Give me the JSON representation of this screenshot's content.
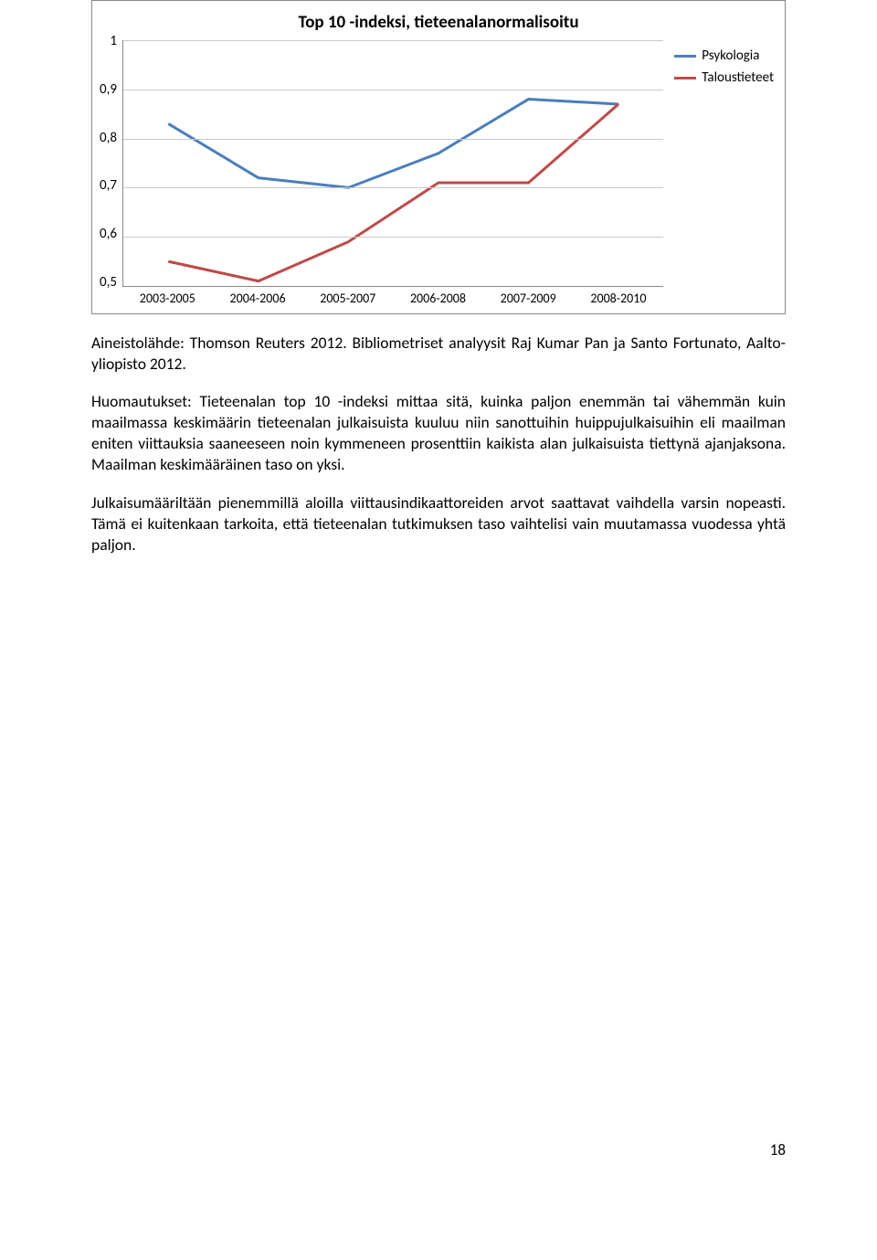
{
  "chart": {
    "type": "line",
    "title": "Top 10 -indeksi, tieteenalanormalisoitu",
    "title_fontsize": 19,
    "title_weight": "bold",
    "background_color": "#ffffff",
    "border_color": "#888888",
    "grid_color": "#c8c8c8",
    "axis_color": "#888888",
    "label_fontsize": 15,
    "y_ticks": [
      "1",
      "0,9",
      "0,8",
      "0,7",
      "0,6",
      "0,5"
    ],
    "ylim": [
      0.5,
      1.0
    ],
    "ytick_step": 0.1,
    "x_labels": [
      "2003-2005",
      "2004-2006",
      "2005-2007",
      "2006-2008",
      "2007-2009",
      "2008-2010"
    ],
    "series": [
      {
        "name": "Psykologia",
        "color": "#4a7ebb",
        "line_width": 3,
        "values": [
          0.83,
          0.72,
          0.7,
          0.77,
          0.88,
          0.87
        ]
      },
      {
        "name": "Taloustieteet",
        "color": "#be4b48",
        "line_width": 3,
        "values": [
          0.55,
          0.51,
          0.59,
          0.71,
          0.71,
          0.87
        ]
      }
    ],
    "legend_fontsize": 15
  },
  "paragraphs": {
    "p1_prefix": "Aineistolähde: Thomson Reuters 2012. ",
    "p1_rest": "Bibliometriset analyysit Raj Kumar Pan ja Santo Fortunato, Aalto-yliopisto 2012.",
    "p2": "Huomautukset: Tieteenalan top 10 -indeksi mittaa sitä, kuinka paljon enemmän tai vähemmän kuin maailmassa keskimäärin tieteenalan julkaisuista kuuluu niin sanottuihin huippujulkaisuihin eli maailman eniten viittauksia saaneeseen noin kymmeneen prosenttiin kaikista alan julkaisuista tiettynä ajanjaksona. Maailman keskimääräinen taso on yksi.",
    "p3": "Julkaisumääriltään pienemmillä aloilla viittausindikaattoreiden arvot saattavat vaihdella varsin nopeasti. Tämä ei kuitenkaan tarkoita, että tieteenalan tutkimuksen taso vaihtelisi vain muutamassa vuodessa yhtä paljon."
  },
  "page_number": "18"
}
